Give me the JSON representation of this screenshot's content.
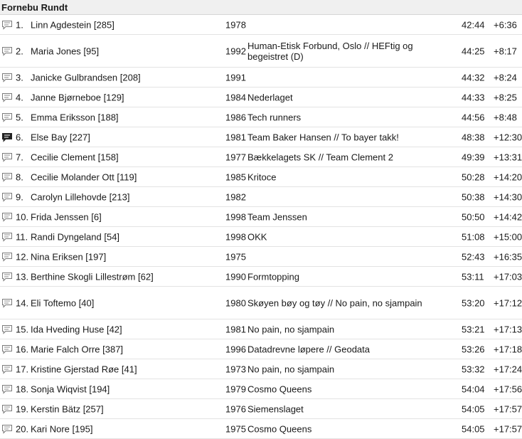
{
  "header": {
    "title": "Fornebu Rundt"
  },
  "rows": [
    {
      "place": "1.",
      "name": "Linn Agdestein [285]",
      "year": "1978",
      "team": "",
      "time": "42:44",
      "diff": "+6:36",
      "comment": false
    },
    {
      "place": "2.",
      "name": "Maria Jones [95]",
      "year": "1992",
      "team": "Human-Etisk Forbund, Oslo // HEFtig og begeistret (D)",
      "time": "44:25",
      "diff": "+8:17",
      "comment": false
    },
    {
      "place": "3.",
      "name": "Janicke Gulbrandsen [208]",
      "year": "1991",
      "team": "",
      "time": "44:32",
      "diff": "+8:24",
      "comment": false
    },
    {
      "place": "4.",
      "name": "Janne Bjørneboe [129]",
      "year": "1984",
      "team": "Nederlaget",
      "time": "44:33",
      "diff": "+8:25",
      "comment": false
    },
    {
      "place": "5.",
      "name": "Emma Eriksson [188]",
      "year": "1986",
      "team": "Tech runners",
      "time": "44:56",
      "diff": "+8:48",
      "comment": false
    },
    {
      "place": "6.",
      "name": "Else Bay [227]",
      "year": "1981",
      "team": "Team Baker Hansen // To bayer takk!",
      "time": "48:38",
      "diff": "+12:30",
      "comment": true
    },
    {
      "place": "7.",
      "name": "Cecilie Clement [158]",
      "year": "1977",
      "team": "Bækkelagets SK // Team Clement 2",
      "time": "49:39",
      "diff": "+13:31",
      "comment": false
    },
    {
      "place": "8.",
      "name": "Cecilie Molander Ott [119]",
      "year": "1985",
      "team": "Kritoce",
      "time": "50:28",
      "diff": "+14:20",
      "comment": false
    },
    {
      "place": "9.",
      "name": "Carolyn Lillehovde [213]",
      "year": "1982",
      "team": "",
      "time": "50:38",
      "diff": "+14:30",
      "comment": false
    },
    {
      "place": "10.",
      "name": "Frida Jenssen [6]",
      "year": "1998",
      "team": "Team Jenssen",
      "time": "50:50",
      "diff": "+14:42",
      "comment": false
    },
    {
      "place": "11.",
      "name": "Randi Dyngeland [54]",
      "year": "1998",
      "team": "OKK",
      "time": "51:08",
      "diff": "+15:00",
      "comment": false
    },
    {
      "place": "12.",
      "name": "Nina Eriksen [197]",
      "year": "1975",
      "team": "",
      "time": "52:43",
      "diff": "+16:35",
      "comment": false
    },
    {
      "place": "13.",
      "name": "Berthine Skogli Lillestrøm [62]",
      "year": "1990",
      "team": "Formtopping",
      "time": "53:11",
      "diff": "+17:03",
      "comment": false
    },
    {
      "place": "14.",
      "name": "Eli Toftemo [40]",
      "year": "1980",
      "team": "Skøyen bøy og tøy // No pain, no sjampain",
      "time": "53:20",
      "diff": "+17:12",
      "comment": false
    },
    {
      "place": "15.",
      "name": "Ida Hveding Huse [42]",
      "year": "1981",
      "team": "No pain, no sjampain",
      "time": "53:21",
      "diff": "+17:13",
      "comment": false
    },
    {
      "place": "16.",
      "name": "Marie Falch Orre [387]",
      "year": "1996",
      "team": "Datadrevne løpere // Geodata",
      "time": "53:26",
      "diff": "+17:18",
      "comment": false
    },
    {
      "place": "17.",
      "name": "Kristine Gjerstad Røe [41]",
      "year": "1973",
      "team": "No pain, no sjampain",
      "time": "53:32",
      "diff": "+17:24",
      "comment": false
    },
    {
      "place": "18.",
      "name": "Sonja Wiqvist [194]",
      "year": "1979",
      "team": "Cosmo Queens",
      "time": "54:04",
      "diff": "+17:56",
      "comment": false
    },
    {
      "place": "19.",
      "name": "Kerstin Bätz [257]",
      "year": "1976",
      "team": "Siemenslaget",
      "time": "54:05",
      "diff": "+17:57",
      "comment": false
    },
    {
      "place": "20.",
      "name": "Kari Nore [195]",
      "year": "1975",
      "team": "Cosmo Queens",
      "time": "54:05",
      "diff": "+17:57",
      "comment": false
    }
  ]
}
